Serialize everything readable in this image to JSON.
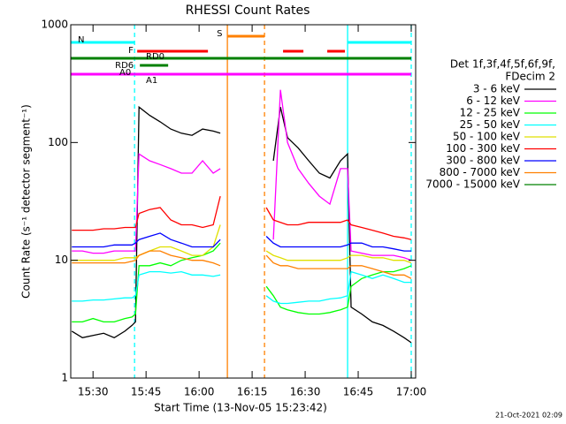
{
  "chart_data": {
    "type": "line",
    "title": "RHESSI Count Rates",
    "x_label": "Start Time (13-Nov-05 15:23:42)",
    "y_label": "Count Rate (s⁻¹ detector segment⁻¹)",
    "legend_title": [
      "Det 1f,3f,4f,5f,6f,9f,",
      "FDecim 2"
    ],
    "timestamp": "21-Oct-2021 02:09",
    "log_y": true,
    "legend": "right",
    "xlim": [
      "15:23:42",
      "17:01:15"
    ],
    "xticks": [
      "15:30",
      "15:45",
      "16:00",
      "16:15",
      "16:30",
      "16:45",
      "17:00"
    ],
    "ylim": [
      1,
      1000
    ],
    "yticks": [
      1,
      10,
      100,
      1000
    ],
    "x": [
      "15:24",
      "15:27",
      "15:30",
      "15:33",
      "15:36",
      "15:39",
      "15:41",
      "15:42",
      "15:43",
      "15:46",
      "15:49",
      "15:52",
      "15:55",
      "15:58",
      "16:01",
      "16:04",
      "16:06",
      "16:12",
      "16:19",
      "16:21",
      "16:23",
      "16:25",
      "16:28",
      "16:31",
      "16:34",
      "16:37",
      "16:40",
      "16:42",
      "16:43",
      "16:46",
      "16:49",
      "16:52",
      "16:55",
      "16:58",
      "17:00"
    ],
    "series": [
      {
        "name": "3 - 6 keV",
        "color": "#000000",
        "values": [
          2.5,
          2.2,
          2.3,
          2.4,
          2.2,
          2.5,
          2.8,
          3,
          200,
          170,
          150,
          130,
          120,
          115,
          130,
          125,
          120,
          null,
          null,
          70,
          200,
          110,
          90,
          70,
          55,
          50,
          70,
          80,
          4,
          3.5,
          3,
          2.8,
          2.5,
          2.2,
          2
        ]
      },
      {
        "name": "6 - 12 keV",
        "color": "#ff00ff",
        "values": [
          12,
          12,
          11.5,
          11.5,
          12,
          12,
          12,
          12,
          80,
          70,
          65,
          60,
          55,
          55,
          70,
          55,
          60,
          null,
          null,
          15,
          280,
          100,
          60,
          45,
          35,
          30,
          60,
          60,
          12,
          11.5,
          11,
          11,
          11,
          10.5,
          10
        ]
      },
      {
        "name": "12 - 25 keV",
        "color": "#00ff00",
        "values": [
          3,
          3,
          3.2,
          3,
          3,
          3.2,
          3.3,
          3.5,
          9,
          9,
          9.5,
          9,
          10,
          10.5,
          11,
          12,
          14,
          null,
          6,
          5,
          4,
          3.8,
          3.6,
          3.5,
          3.5,
          3.6,
          3.8,
          4,
          6,
          7,
          7.5,
          8,
          8,
          8.5,
          9
        ]
      },
      {
        "name": "25 - 50 keV",
        "color": "#00ffff",
        "values": [
          4.5,
          4.5,
          4.6,
          4.6,
          4.7,
          4.8,
          4.8,
          5,
          7.5,
          8,
          8,
          7.8,
          8,
          7.5,
          7.5,
          7.3,
          7.5,
          null,
          5,
          4.5,
          4.3,
          4.3,
          4.4,
          4.5,
          4.5,
          4.7,
          4.8,
          5,
          8,
          7.5,
          7,
          7.5,
          7,
          6.5,
          6.5
        ]
      },
      {
        "name": "50 - 100 keV",
        "color": "#e0e000",
        "values": [
          10,
          10,
          10,
          10,
          10,
          10.5,
          10.5,
          10.5,
          11,
          12,
          13,
          13,
          12,
          11,
          11,
          13,
          20,
          null,
          12,
          11,
          10.5,
          10,
          10,
          10,
          10,
          10,
          10,
          10.5,
          11,
          11,
          10.5,
          10.5,
          10,
          10,
          9.5
        ]
      },
      {
        "name": "100 - 300 keV",
        "color": "#ff0000",
        "values": [
          18,
          18,
          18,
          18.5,
          18.5,
          19,
          19,
          19,
          25,
          27,
          28,
          22,
          20,
          20,
          19,
          20,
          35,
          null,
          28,
          22,
          21,
          20,
          20,
          21,
          21,
          21,
          21,
          22,
          20,
          19,
          18,
          17,
          16,
          15.5,
          15
        ]
      },
      {
        "name": "300 - 800 keV",
        "color": "#0000ff",
        "values": [
          13,
          13,
          13,
          13,
          13.5,
          13.5,
          13.5,
          14,
          15,
          16,
          17,
          15,
          14,
          13,
          13,
          13,
          15,
          null,
          16,
          14,
          13,
          13,
          13,
          13,
          13,
          13,
          13,
          13.5,
          14,
          14,
          13,
          13,
          12.5,
          12,
          12
        ]
      },
      {
        "name": "800 - 7000 keV",
        "color": "#ff8000",
        "values": [
          9.5,
          9.5,
          9.5,
          9.5,
          9.5,
          9.5,
          9.8,
          10,
          11,
          12,
          12,
          11,
          10.5,
          10,
          10,
          9.5,
          9,
          null,
          11,
          9.5,
          9,
          9,
          8.5,
          8.5,
          8.5,
          8.5,
          8.5,
          8.5,
          9,
          9,
          8.5,
          8,
          7.5,
          7.5,
          7
        ]
      },
      {
        "name": "7000 - 15000 keV",
        "color": "#008000",
        "values": [
          null,
          null,
          null,
          null,
          null,
          null,
          null,
          null,
          null,
          null,
          null,
          null,
          null,
          null,
          null,
          null,
          null,
          null,
          null,
          null,
          null,
          null,
          null,
          null,
          null,
          null,
          null,
          null,
          null,
          null,
          null,
          null,
          null,
          null,
          null
        ]
      }
    ],
    "flags": [
      {
        "label": "N",
        "color": "#00ffff",
        "ranges": [
          [
            "15:23:42",
            "15:41:45"
          ],
          [
            "16:42",
            "17:00"
          ]
        ]
      },
      {
        "label": "S",
        "color": "#ff8000",
        "ranges": [
          [
            "16:08",
            "16:18:30"
          ]
        ]
      },
      {
        "label": "F",
        "color": "#ff0000",
        "ranges": [
          [
            "15:42:30",
            "16:02:30"
          ],
          [
            "16:23:45",
            "16:29:30"
          ],
          [
            "16:36:15",
            "16:41:15"
          ]
        ]
      },
      {
        "label": "RD0",
        "color": "#008000",
        "ranges": [
          [
            "15:23:42",
            "17:00"
          ]
        ]
      },
      {
        "label": "RD6",
        "color": "#008000",
        "ranges": [
          [
            "15:43:15",
            "15:51:15"
          ]
        ]
      },
      {
        "label": "A0",
        "color": "#ff00ff",
        "ranges": [
          [
            "15:23:42",
            "17:00"
          ]
        ]
      },
      {
        "label": "A1",
        "color": "#ff00ff",
        "ranges": []
      }
    ],
    "vlines": [
      {
        "x": "15:41:45",
        "color": "#00ffff",
        "dashed": true
      },
      {
        "x": "16:42",
        "color": "#00ffff",
        "dashed": false
      },
      {
        "x": "17:00",
        "color": "#00ffff",
        "dashed": true
      },
      {
        "x": "16:08",
        "color": "#ff8000",
        "dashed": false
      },
      {
        "x": "16:18:30",
        "color": "#ff8000",
        "dashed": true
      }
    ]
  }
}
